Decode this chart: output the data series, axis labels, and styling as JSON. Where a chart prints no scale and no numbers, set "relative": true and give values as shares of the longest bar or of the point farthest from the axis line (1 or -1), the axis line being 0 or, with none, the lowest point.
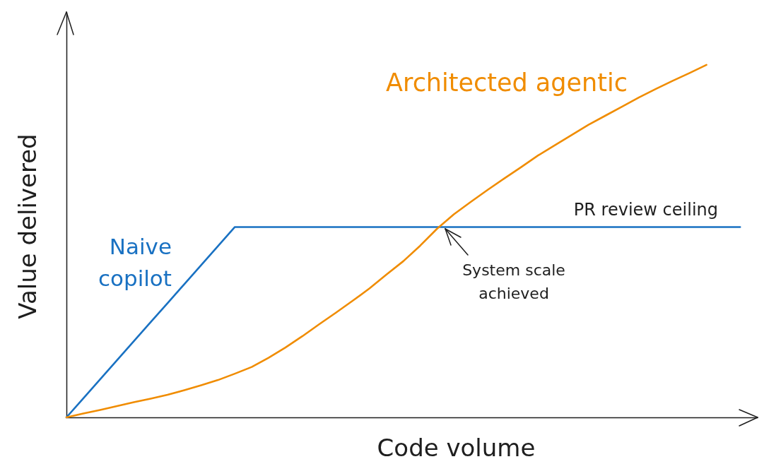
{
  "chart_data": {
    "type": "line",
    "relative": true,
    "xlabel": "Code volume",
    "ylabel": "Value delivered",
    "categories": [
      null,
      null,
      null,
      null,
      null,
      null,
      null,
      null,
      null,
      null,
      null,
      null,
      null,
      null,
      null,
      null,
      null,
      null,
      null,
      null,
      null,
      null,
      null,
      null,
      null,
      null,
      null,
      null,
      null,
      null,
      null,
      null,
      null,
      null,
      null,
      null,
      null,
      null,
      null,
      null,
      null
    ],
    "series": [
      {
        "name": "Naive\ncopilot",
        "color": "#1971c2",
        "values": [
          0,
          0.054,
          0.108,
          0.162,
          0.216,
          0.27,
          0.324,
          0.378,
          0.432,
          0.486,
          0.54,
          0.54,
          0.54,
          0.54,
          0.54,
          0.54,
          0.54,
          0.54,
          0.54,
          0.54,
          0.54,
          0.54,
          0.54,
          0.54,
          0.54,
          0.54,
          0.54,
          0.54,
          0.54,
          0.54,
          0.54,
          0.54,
          0.54,
          0.54,
          0.54,
          0.54,
          0.54,
          0.54,
          0.54,
          0.54,
          0.54
        ]
      },
      {
        "name": "Architected agentic",
        "color": "#f08c00",
        "values": [
          0,
          0.011,
          0.021,
          0.032,
          0.043,
          0.053,
          0.064,
          0.077,
          0.091,
          0.106,
          0.124,
          0.143,
          0.169,
          0.198,
          0.23,
          0.264,
          0.297,
          0.331,
          0.366,
          0.405,
          0.443,
          0.487,
          0.535,
          0.576,
          0.611,
          0.645,
          0.678,
          0.71,
          0.743,
          0.772,
          0.801,
          0.83,
          0.856,
          0.882,
          0.908,
          0.932,
          0.955,
          0.977,
          1,
          null,
          null
        ]
      }
    ],
    "annotations": [
      {
        "text": "PR review ceiling",
        "y": 0.54
      },
      {
        "text": "System scale\nachieved",
        "y": 0.54
      }
    ]
  }
}
